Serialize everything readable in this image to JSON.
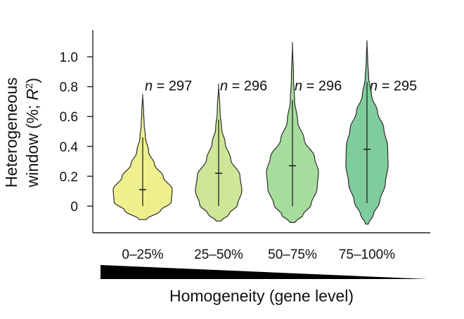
{
  "chart_data": {
    "type": "violin",
    "categories": [
      "0–25%",
      "25–50%",
      "50–75%",
      "75–100%"
    ],
    "n_prefix": "n",
    "n_values": [
      "297",
      "296",
      "296",
      "295"
    ],
    "medians": [
      0.11,
      0.22,
      0.27,
      0.38
    ],
    "whisker_low": [
      0.0,
      0.0,
      0.0,
      0.02
    ],
    "whisker_high": [
      0.46,
      0.58,
      0.71,
      0.83
    ],
    "ranges": [
      [
        -0.09,
        0.75
      ],
      [
        -0.1,
        0.82
      ],
      [
        -0.11,
        1.1
      ],
      [
        -0.12,
        1.11
      ]
    ],
    "colors": [
      "#eef08e",
      "#cde698",
      "#a6dd9c",
      "#7fcc9c"
    ],
    "ylabel_line1": "Heterogeneous",
    "ylabel_line2_prefix": "window (%; ",
    "ylabel_var": "R",
    "ylabel_sup": "2",
    "ylabel_suffix": ")",
    "yticks": [
      "0",
      "0.2",
      "0.4",
      "0.6",
      "0.8",
      "1.0"
    ],
    "ylim": [
      -0.18,
      1.18
    ],
    "xlabel": "Homogeneity (gene level)"
  }
}
